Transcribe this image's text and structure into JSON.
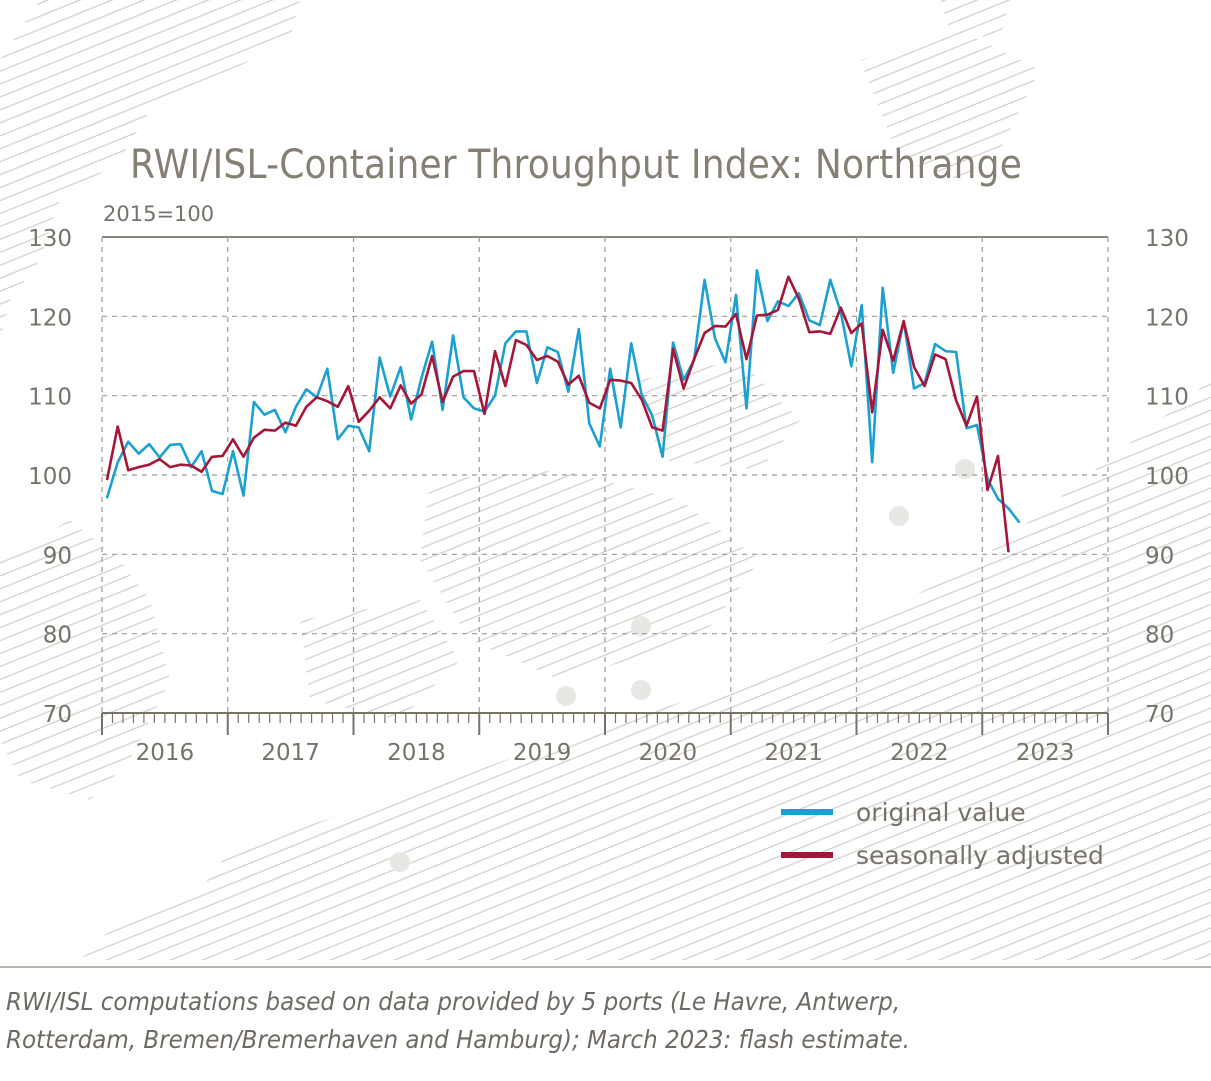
{
  "chart_data": {
    "type": "line",
    "title": "RWI/ISL-Container Throughput Index: Northrange",
    "subtitle": "2015=100",
    "ylim": [
      70,
      130
    ],
    "yticks": [
      130,
      120,
      110,
      100,
      90,
      80,
      70
    ],
    "year_labels": [
      "2016",
      "2017",
      "2018",
      "2019",
      "2020",
      "2021",
      "2022",
      "2023"
    ],
    "x_start": "2016-01",
    "grid": true,
    "legend_position": "bottom-right",
    "series": [
      {
        "name": "original value",
        "color": "#1ba1d1",
        "values": [
          97.2,
          101.6,
          104.2,
          102.7,
          103.9,
          102.2,
          103.8,
          103.9,
          101.0,
          103.0,
          98.0,
          97.6,
          103.0,
          97.4,
          109.2,
          107.6,
          108.2,
          105.4,
          108.6,
          110.8,
          109.8,
          113.4,
          104.5,
          106.2,
          106.0,
          103.0,
          114.8,
          109.9,
          113.6,
          107.0,
          112.3,
          116.8,
          108.2,
          117.6,
          109.8,
          108.4,
          108.0,
          110.0,
          116.6,
          118.1,
          118.1,
          111.6,
          116.1,
          115.5,
          110.5,
          118.4,
          106.5,
          103.6,
          113.4,
          106.0,
          116.6,
          110.1,
          107.5,
          102.3,
          116.7,
          112.0,
          114.5,
          124.6,
          117.2,
          114.2,
          122.7,
          108.4,
          125.8,
          119.4,
          121.9,
          121.3,
          122.9,
          119.5,
          118.9,
          124.6,
          120.5,
          113.7,
          121.4,
          101.6,
          123.6,
          112.9,
          119.4,
          110.9,
          111.6,
          116.5,
          115.6,
          115.5,
          105.9,
          106.3,
          99.5,
          97.0,
          95.8,
          94.1
        ]
      },
      {
        "name": "seasonally adjusted",
        "color": "#a61639",
        "values": [
          99.5,
          106.1,
          100.6,
          101.0,
          101.3,
          102.0,
          101.0,
          101.3,
          101.2,
          100.4,
          102.3,
          102.4,
          104.5,
          102.3,
          104.7,
          105.7,
          105.6,
          106.6,
          106.2,
          108.6,
          109.8,
          109.3,
          108.6,
          111.2,
          106.7,
          108.1,
          109.8,
          108.4,
          111.3,
          109.0,
          110.2,
          115.0,
          109.2,
          112.4,
          113.1,
          113.1,
          107.7,
          115.6,
          111.2,
          117.0,
          116.4,
          114.5,
          115.0,
          114.3,
          111.4,
          112.5,
          109.1,
          108.4,
          112.0,
          111.9,
          111.6,
          109.5,
          106.0,
          105.6,
          115.9,
          110.9,
          114.6,
          117.9,
          118.8,
          118.7,
          120.3,
          114.6,
          120.1,
          120.2,
          120.8,
          125.0,
          122.2,
          118.0,
          118.1,
          117.8,
          121.1,
          117.9,
          119.1,
          107.9,
          118.3,
          114.4,
          119.4,
          113.6,
          111.2,
          115.2,
          114.6,
          109.4,
          106.2,
          109.9,
          98.1,
          102.4,
          90.4
        ]
      }
    ]
  },
  "legend": [
    {
      "label": "original value",
      "color": "#1ba1d1"
    },
    {
      "label": "seasonally adjusted",
      "color": "#a61639"
    }
  ],
  "footnote": {
    "line1": "RWI/ISL computations based on data provided by 5 ports (Le Havre, Antwerp,",
    "line2": "Rotterdam, Bremen/Bremerhaven and Hamburg); March 2023: flash estimate."
  }
}
